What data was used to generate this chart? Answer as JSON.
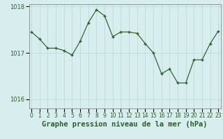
{
  "x": [
    0,
    1,
    2,
    3,
    4,
    5,
    6,
    7,
    8,
    9,
    10,
    11,
    12,
    13,
    14,
    15,
    16,
    17,
    18,
    19,
    20,
    21,
    22,
    23
  ],
  "y": [
    1017.45,
    1017.3,
    1017.1,
    1017.1,
    1017.05,
    1016.95,
    1017.25,
    1017.65,
    1017.93,
    1017.8,
    1017.35,
    1017.45,
    1017.45,
    1017.42,
    1017.2,
    1017.0,
    1016.55,
    1016.65,
    1016.35,
    1016.35,
    1016.85,
    1016.85,
    1017.2,
    1017.47
  ],
  "line_color": "#2a5e2a",
  "marker_color": "#2a5e2a",
  "background_color": "#d8eeee",
  "grid_color": "#b8d8d8",
  "axis_color": "#888888",
  "title": "Graphe pression niveau de la mer (hPa)",
  "ylim": [
    1015.8,
    1018.05
  ],
  "yticks": [
    1016,
    1017,
    1018
  ],
  "xticks": [
    0,
    1,
    2,
    3,
    4,
    5,
    6,
    7,
    8,
    9,
    10,
    11,
    12,
    13,
    14,
    15,
    16,
    17,
    18,
    19,
    20,
    21,
    22,
    23
  ],
  "title_fontsize": 7.5,
  "tick_fontsize": 6,
  "title_color": "#2a5e2a"
}
